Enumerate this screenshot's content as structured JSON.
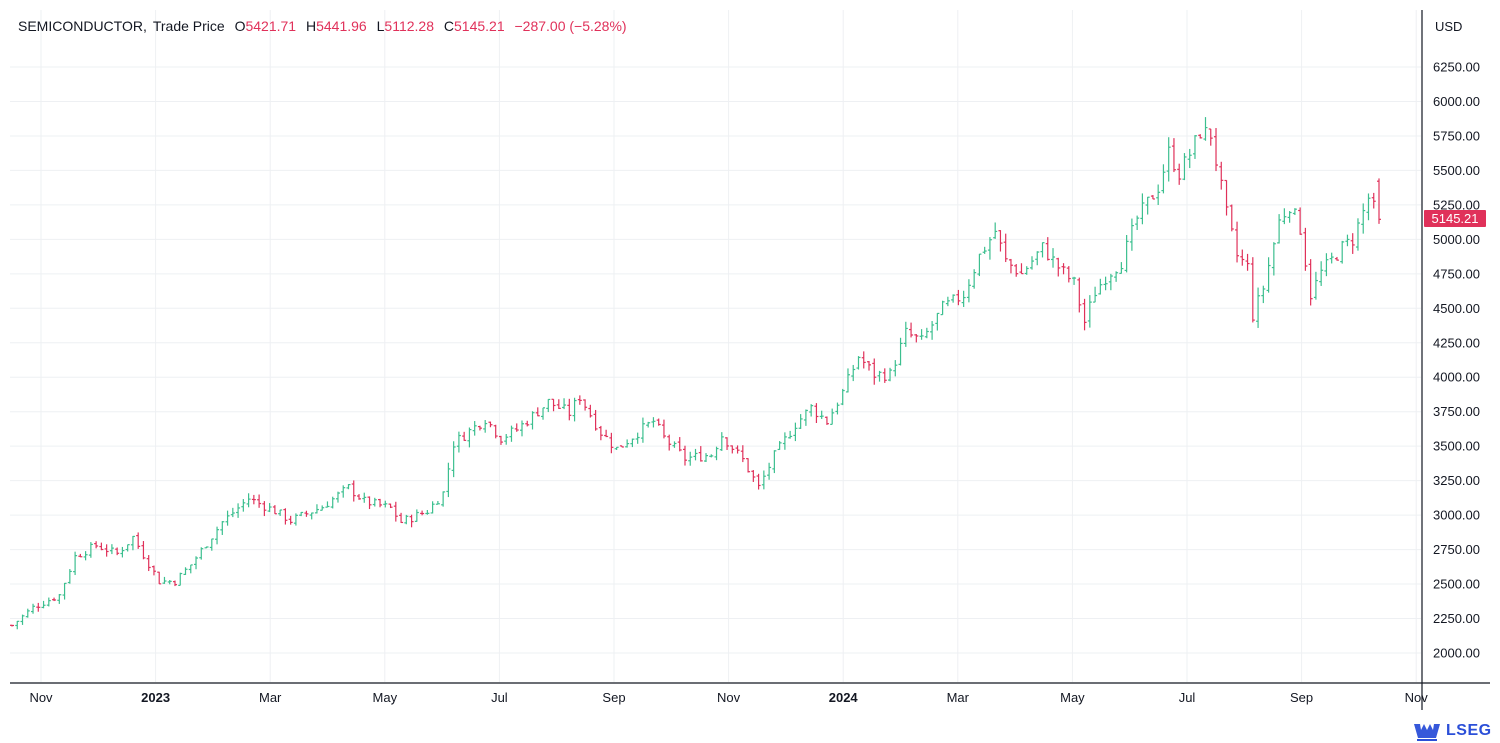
{
  "legend": {
    "symbol": "SEMICONDUCTOR,",
    "label": "Trade Price",
    "open_prefix": "O",
    "open": "5421.71",
    "high_prefix": "H",
    "high": "5441.96",
    "low_prefix": "L",
    "low": "5112.28",
    "close_prefix": "C",
    "close": "5145.21",
    "change": "−287.00 (−5.28%)"
  },
  "currency": "USD",
  "last_price_tag": "5145.21",
  "brand": "LSEG",
  "colors": {
    "up": "#3cbf8f",
    "down": "#e0315a",
    "grid": "#eef0f3",
    "axis": "#131722"
  },
  "chart_data": {
    "type": "ohlc",
    "ylim": [
      1850,
      6450
    ],
    "y_ticks": [
      "6250.00",
      "6000.00",
      "5750.00",
      "5500.00",
      "5250.00",
      "5000.00",
      "4750.00",
      "4500.00",
      "4250.00",
      "4000.00",
      "3750.00",
      "3500.00",
      "3250.00",
      "3000.00",
      "2750.00",
      "2500.00",
      "2250.00",
      "2000.00"
    ],
    "x_ticks": [
      {
        "label": "Nov",
        "bold": false
      },
      {
        "label": "2023",
        "bold": true
      },
      {
        "label": "Mar",
        "bold": false
      },
      {
        "label": "May",
        "bold": false
      },
      {
        "label": "Jul",
        "bold": false
      },
      {
        "label": "Sep",
        "bold": false
      },
      {
        "label": "Nov",
        "bold": false
      },
      {
        "label": "2024",
        "bold": true
      },
      {
        "label": "Mar",
        "bold": false
      },
      {
        "label": "May",
        "bold": false
      },
      {
        "label": "Jul",
        "bold": false
      },
      {
        "label": "Sep",
        "bold": false
      },
      {
        "label": "Nov",
        "bold": false
      }
    ],
    "price_anchors": [
      [
        0,
        2200
      ],
      [
        4,
        2330
      ],
      [
        9,
        2420
      ],
      [
        12,
        2700
      ],
      [
        16,
        2780
      ],
      [
        20,
        2720
      ],
      [
        23,
        2840
      ],
      [
        28,
        2520
      ],
      [
        31,
        2520
      ],
      [
        34,
        2640
      ],
      [
        40,
        2950
      ],
      [
        45,
        3120
      ],
      [
        50,
        3030
      ],
      [
        53,
        2960
      ],
      [
        59,
        3060
      ],
      [
        64,
        3200
      ],
      [
        67,
        3100
      ],
      [
        72,
        3050
      ],
      [
        74,
        2950
      ],
      [
        79,
        3030
      ],
      [
        82,
        3160
      ],
      [
        84,
        3520
      ],
      [
        90,
        3700
      ],
      [
        93,
        3560
      ],
      [
        96,
        3620
      ],
      [
        102,
        3820
      ],
      [
        106,
        3740
      ],
      [
        108,
        3860
      ],
      [
        112,
        3600
      ],
      [
        115,
        3480
      ],
      [
        119,
        3600
      ],
      [
        122,
        3680
      ],
      [
        124,
        3560
      ],
      [
        128,
        3410
      ],
      [
        133,
        3440
      ],
      [
        135,
        3580
      ],
      [
        139,
        3400
      ],
      [
        142,
        3200
      ],
      [
        145,
        3430
      ],
      [
        149,
        3660
      ],
      [
        152,
        3780
      ],
      [
        155,
        3680
      ],
      [
        158,
        3890
      ],
      [
        161,
        4150
      ],
      [
        164,
        4020
      ],
      [
        167,
        4020
      ],
      [
        170,
        4320
      ],
      [
        173,
        4260
      ],
      [
        177,
        4500
      ],
      [
        181,
        4600
      ],
      [
        184,
        4880
      ],
      [
        187,
        5060
      ],
      [
        189,
        4840
      ],
      [
        192,
        4750
      ],
      [
        196,
        4940
      ],
      [
        199,
        4800
      ],
      [
        202,
        4680
      ],
      [
        204,
        4400
      ],
      [
        206,
        4620
      ],
      [
        208,
        4730
      ],
      [
        211,
        4840
      ],
      [
        214,
        5150
      ],
      [
        218,
        5380
      ],
      [
        220,
        5630
      ],
      [
        222,
        5480
      ],
      [
        224,
        5620
      ],
      [
        226,
        5780
      ],
      [
        228,
        5760
      ],
      [
        231,
        5180
      ],
      [
        233,
        4880
      ],
      [
        235,
        4800
      ],
      [
        236,
        4450
      ],
      [
        238,
        4650
      ],
      [
        241,
        5130
      ],
      [
        243,
        5250
      ],
      [
        245,
        5080
      ],
      [
        247,
        4600
      ],
      [
        249,
        4760
      ],
      [
        253,
        4940
      ],
      [
        255,
        5000
      ],
      [
        258,
        5300
      ],
      [
        260,
        5145
      ]
    ],
    "n_bars": 261,
    "x_range_months": [
      0,
      24.25
    ]
  }
}
